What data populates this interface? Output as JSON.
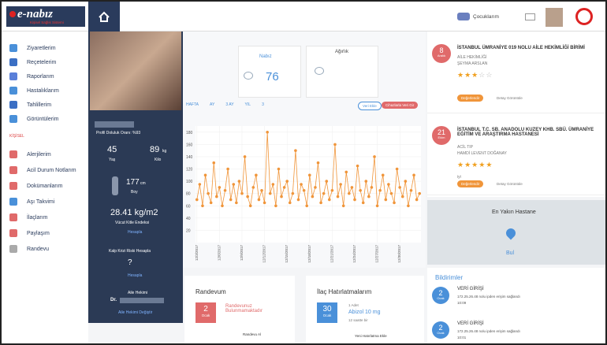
{
  "header": {
    "logo": "e-nabız",
    "logo_sub": "Kişisel Sağlık Sistemi",
    "user": "Çocuklarım"
  },
  "sidebar": {
    "items": [
      "Ziyaretlerim",
      "Reçetelerim",
      "Raporlarım",
      "Hastalıklarım",
      "Tahlillerim",
      "Görüntülerim"
    ],
    "section": "KİŞİSEL",
    "items2": [
      "Alerjilerim",
      "Acil Durum Notlarım",
      "Dokümanlarım",
      "Aşı Takvimi",
      "İlaçlarım",
      "Paylaşım",
      "Randevu"
    ]
  },
  "profile": {
    "completion": "Profil Doluluk Oranı: %93",
    "age": "45",
    "age_label": "Yaş",
    "weight": "89",
    "weight_unit": "kg",
    "weight_label": "Kilo",
    "height": "177",
    "height_unit": "cm",
    "height_label": "Boy",
    "bmi": "28.41 kg/m2",
    "bmi_label": "Vücut Kitle Endeksi",
    "calc1": "Hesapla",
    "risk_label": "Kalp Krizi Riski Hesapla",
    "risk": "?",
    "calc2": "Hesapla",
    "doctor_label": "Aile Hekimi",
    "doctor": "Dr.",
    "change": "Aile Hekimi Değiştir"
  },
  "cards": {
    "pulse_label": "Nabız",
    "pulse": "76",
    "weight_label": "Ağırlık"
  },
  "tabs": [
    "HAFTA",
    "AY",
    "3 AY",
    "YIL",
    "3"
  ],
  "buttons": [
    "Veri Ekle",
    "Cihazlarla Veri Gir"
  ],
  "chart_data": {
    "type": "line",
    "color": "#f0953a",
    "ylim": [
      0,
      190
    ],
    "yticks": [
      20,
      40,
      60,
      80,
      100,
      120,
      140,
      160,
      180
    ],
    "categories": [
      "12/3/2017",
      null,
      null,
      null,
      null,
      null,
      null,
      null,
      "12/6/2017",
      null,
      null,
      null,
      null,
      null,
      null,
      null,
      "12/9/2017",
      null,
      null,
      null,
      null,
      null,
      null,
      null,
      "12/12/2017",
      null,
      null,
      null,
      null,
      null,
      null,
      null,
      "12/15/2017",
      null,
      null,
      null,
      null,
      null,
      null,
      null,
      "12/18/2017",
      null,
      null,
      null,
      null,
      null,
      null,
      null,
      "12/21/2017",
      null,
      null,
      null,
      null,
      null,
      null,
      null,
      "12/24/2017",
      null,
      null,
      null,
      null,
      null,
      null,
      null,
      "12/27/2017",
      null,
      null,
      null,
      null,
      null,
      null,
      null,
      "12/30/2017",
      null,
      null,
      null,
      null,
      null,
      null,
      null
    ],
    "values": [
      70,
      95,
      60,
      110,
      80,
      65,
      130,
      75,
      90,
      60,
      85,
      120,
      70,
      95,
      65,
      100,
      80,
      140,
      75,
      60,
      90,
      110,
      70,
      85,
      65,
      180,
      80,
      95,
      60,
      120,
      75,
      90,
      100,
      65,
      80,
      150,
      70,
      95,
      85,
      60,
      110,
      75,
      90,
      130,
      65,
      80,
      100,
      70,
      85,
      160,
      75,
      95,
      60,
      115,
      80,
      90,
      70,
      125,
      85,
      65,
      100,
      75,
      90,
      140,
      60,
      85,
      110,
      70,
      95,
      80,
      65,
      120,
      90,
      75,
      100,
      60,
      85,
      110,
      70,
      80
    ]
  },
  "appointment": {
    "title": "Randevum",
    "day": "2",
    "month": "Ocak",
    "text": "Randevunuz Bulunmamaktadır",
    "action": "Randevu Al"
  },
  "medicine": {
    "title": "İlaç Hatırlatmalarım",
    "day": "30",
    "month": "Ocak",
    "count": "1 Adet",
    "name": "Abizol 10 mg",
    "freq": "12 saatte bir",
    "action": "Yeni Hatırlatma Ekle"
  },
  "hospitals": [
    {
      "day": "8",
      "month": "Aralık",
      "name": "İSTANBUL ÜMRANİYE 019 NOLU AİLE HEKİMLİĞİ BİRİMİ",
      "dept": "AİLE HEKİMLİĞİ",
      "doctor": "ŞEYMA ARSLAN",
      "rating": 3,
      "rate": "Değerlendir",
      "detail": "Detay Görüntüle"
    },
    {
      "day": "21",
      "month": "Ekim",
      "name": "İSTANBUL T.C. SB. ANADOLU KUZEY KHB. SBÜ. ÜMRANİYE EĞİTİM VE ARAŞTIRMA HASTANESİ",
      "dept": "ACİL TIP",
      "doctor": "HAMDİ LEVENT DOĞANAY",
      "note": "iyi",
      "rating": 5,
      "rate": "Değerlendir",
      "detail": "Detay Görüntüle"
    }
  ],
  "map": {
    "title": "En Yakın Hastane",
    "button": "Bul"
  },
  "notifications": {
    "title": "Bildirimler",
    "items": [
      {
        "day": "2",
        "month": "Ocak",
        "title": "VERİ GİRİŞİ",
        "ip": "172.25.26.48 nolu ipden erişim sağlandı",
        "time": "10:09"
      },
      {
        "day": "2",
        "month": "Ocak",
        "title": "VERİ GİRİŞİ",
        "ip": "172.25.26.48 nolu ipden erişim sağlandı",
        "time": "10:01"
      }
    ]
  }
}
